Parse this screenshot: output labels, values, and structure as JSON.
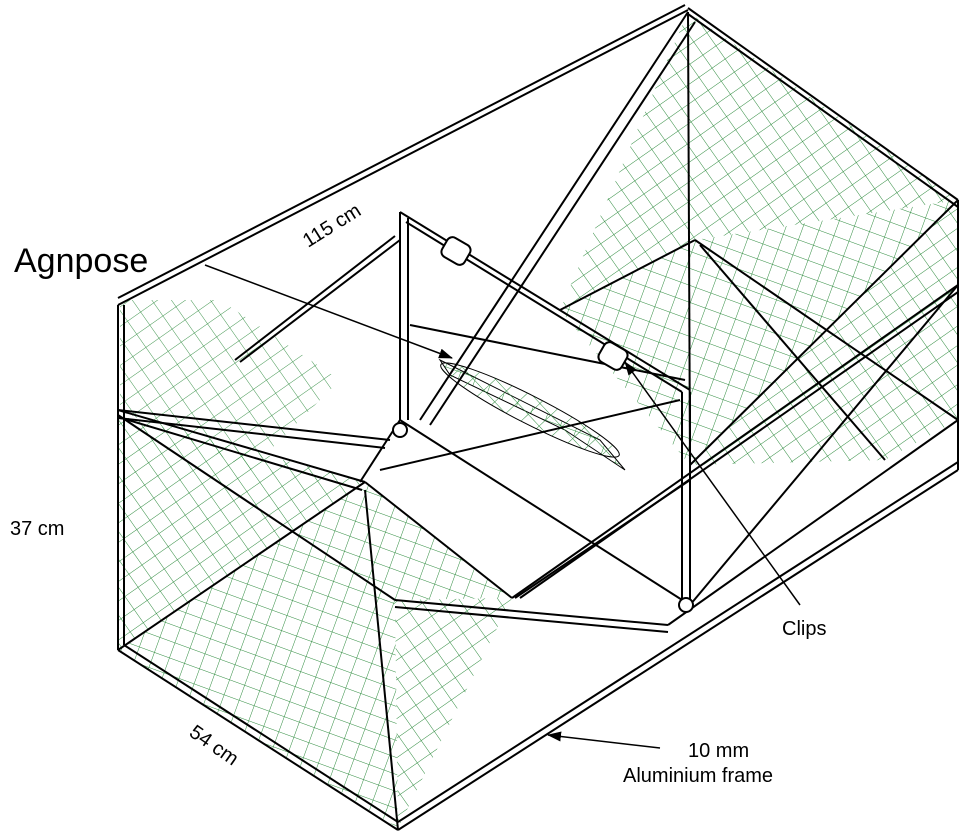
{
  "labels": {
    "agnpose": "Agnpose",
    "length": "115 cm",
    "height": "37 cm",
    "width": "54 cm",
    "clips": "Clips",
    "frame_size": "10 mm",
    "frame_material": "Aluminium frame"
  },
  "colors": {
    "mesh": "#2e8b3e",
    "frame": "#000000",
    "background": "#ffffff"
  }
}
